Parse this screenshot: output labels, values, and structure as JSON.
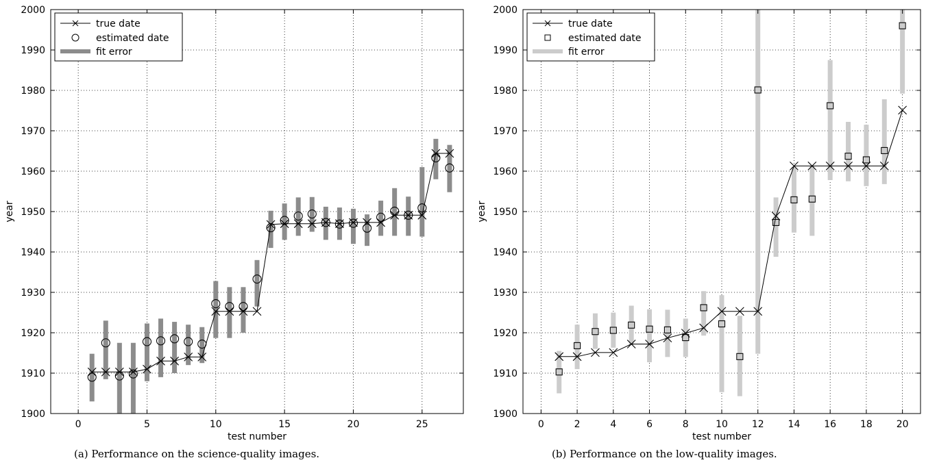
{
  "chart_data": [
    {
      "type": "line",
      "caption": "(a) Performance on the science-quality images.",
      "xlabel": "test number",
      "ylabel": "year",
      "xlim": [
        -2,
        28
      ],
      "ylim": [
        1900,
        2000
      ],
      "xticks": [
        0,
        5,
        10,
        15,
        20,
        25
      ],
      "yticks": [
        1900,
        1910,
        1920,
        1930,
        1940,
        1950,
        1960,
        1970,
        1980,
        1990,
        2000
      ],
      "grid": true,
      "legend": "top-left",
      "estimated_marker": "circle",
      "error_color": "#8c8c8c",
      "series": [
        {
          "name": "true date",
          "x": [
            1,
            2,
            3,
            4,
            5,
            6,
            7,
            8,
            9,
            10,
            11,
            12,
            13,
            14,
            15,
            16,
            17,
            18,
            19,
            20,
            21,
            22,
            23,
            24,
            25,
            26,
            27
          ],
          "values": [
            1910.3,
            1910.3,
            1910.3,
            1910.3,
            1911,
            1913,
            1913,
            1914,
            1914,
            1925.3,
            1925.3,
            1925.3,
            1925.3,
            1946.8,
            1947,
            1947,
            1947,
            1947.3,
            1947,
            1947.3,
            1947.3,
            1947.3,
            1949.1,
            1949.1,
            1949.1,
            1964.4,
            1964.4
          ]
        },
        {
          "name": "estimated date",
          "x": [
            1,
            2,
            3,
            4,
            5,
            6,
            7,
            8,
            9,
            10,
            11,
            12,
            13,
            14,
            15,
            16,
            17,
            18,
            19,
            20,
            21,
            22,
            23,
            24,
            25,
            26,
            27
          ],
          "values": [
            1909,
            1917.5,
            1909.3,
            1909.8,
            1917.8,
            1918,
            1918.5,
            1917.8,
            1917.2,
            1927.2,
            1926.5,
            1926.5,
            1933.3,
            1946,
            1947.8,
            1948.9,
            1949.4,
            1947.3,
            1946.9,
            1947.1,
            1945.9,
            1948.6,
            1950.1,
            1949.1,
            1950.9,
            1963.3,
            1960.8
          ]
        },
        {
          "name": "fit error",
          "x": [
            1,
            2,
            3,
            4,
            5,
            6,
            7,
            8,
            9,
            10,
            11,
            12,
            13,
            14,
            15,
            16,
            17,
            18,
            19,
            20,
            21,
            22,
            23,
            24,
            25,
            26,
            27
          ],
          "low": [
            1903,
            1908.5,
            1899.5,
            1899.5,
            1908,
            1909,
            1910,
            1912,
            1912.5,
            1918.7,
            1918.7,
            1920,
            1926.5,
            1941,
            1943,
            1944,
            1945,
            1943,
            1943,
            1942,
            1941.5,
            1944,
            1944,
            1944,
            1943.8,
            1958,
            1954.8
          ],
          "high": [
            1914.8,
            1923,
            1917.5,
            1917.5,
            1922.3,
            1923.5,
            1922.7,
            1922,
            1921.4,
            1932.8,
            1931.3,
            1931.3,
            1938,
            1950.2,
            1952,
            1953.5,
            1953.6,
            1951.2,
            1951,
            1950.7,
            1949.3,
            1952.7,
            1955.8,
            1953.7,
            1961,
            1968,
            1966.5
          ]
        }
      ]
    },
    {
      "type": "line",
      "caption": "(b) Performance on the low-quality images.",
      "xlabel": "test number",
      "ylabel": "year",
      "xlim": [
        -1,
        21
      ],
      "ylim": [
        1900,
        2000
      ],
      "xticks": [
        0,
        2,
        4,
        6,
        8,
        10,
        12,
        14,
        16,
        18,
        20
      ],
      "yticks": [
        1900,
        1910,
        1920,
        1930,
        1940,
        1950,
        1960,
        1970,
        1980,
        1990,
        2000
      ],
      "grid": true,
      "legend": "top-left",
      "estimated_marker": "square",
      "error_color": "#cccccc",
      "series": [
        {
          "name": "true date",
          "x": [
            1,
            2,
            3,
            4,
            5,
            6,
            7,
            8,
            9,
            10,
            11,
            12,
            13,
            14,
            15,
            16,
            17,
            18,
            19,
            20
          ],
          "values": [
            1914.1,
            1914.1,
            1915.1,
            1915.1,
            1917.2,
            1917.2,
            1918.7,
            1919.9,
            1921.2,
            1925.3,
            1925.3,
            1925.3,
            1948.9,
            1961.3,
            1961.3,
            1961.3,
            1961.3,
            1961.3,
            1961.3,
            1975.1
          ]
        },
        {
          "name": "estimated date",
          "x": [
            1,
            2,
            3,
            4,
            5,
            6,
            7,
            8,
            9,
            10,
            11,
            12,
            13,
            14,
            15,
            16,
            17,
            18,
            19,
            20
          ],
          "values": [
            1910.3,
            1916.8,
            1920.3,
            1920.6,
            1921.9,
            1920.9,
            1920.7,
            1918.8,
            1926.2,
            1922.2,
            1914.1,
            1980.1,
            1947.3,
            1952.9,
            1953.1,
            1976.2,
            1963.7,
            1962.8,
            1965.1,
            1996
          ]
        },
        {
          "name": "fit error",
          "x": [
            1,
            2,
            3,
            4,
            5,
            6,
            7,
            8,
            9,
            10,
            11,
            12,
            13,
            14,
            15,
            16,
            17,
            18,
            19,
            20
          ],
          "low": [
            1905,
            1911,
            1916,
            1916.3,
            1917,
            1912.7,
            1914,
            1914,
            1919.3,
            1905.3,
            1904.3,
            1914.8,
            1938.8,
            1944.8,
            1944,
            1957.8,
            1957.5,
            1956.3,
            1956.8,
            1979.2
          ],
          "high": [
            1915.5,
            1922,
            1924.8,
            1925,
            1926.7,
            1925.8,
            1925.7,
            1923.5,
            1930.3,
            1929.3,
            1924.2,
            2000,
            1953.5,
            1961,
            1961.3,
            1987.5,
            1972.2,
            1971.5,
            1977.8,
            2000
          ]
        }
      ]
    }
  ]
}
